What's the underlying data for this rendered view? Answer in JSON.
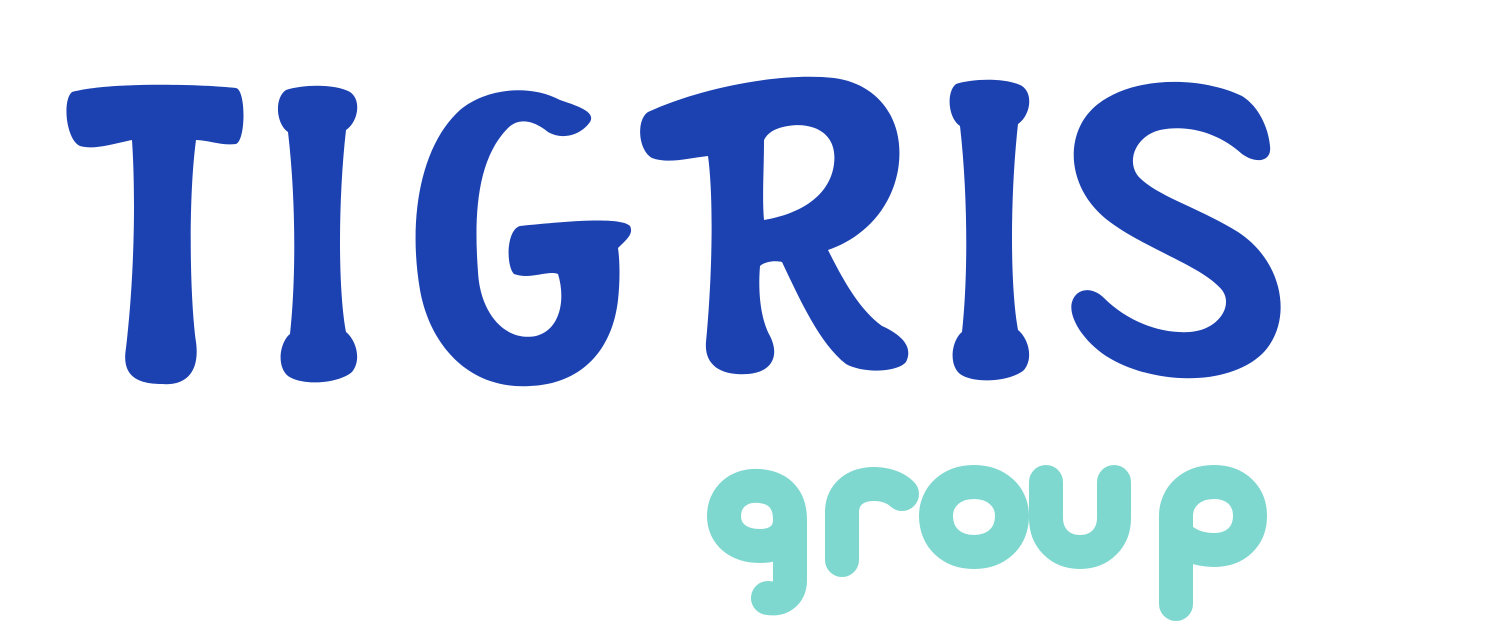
{
  "logo": {
    "primary_word": "TIGRIS",
    "secondary_word": "group",
    "colors": {
      "primary": "#1c42b2",
      "secondary": "#7ed8cf",
      "background": "#ffffff"
    }
  }
}
